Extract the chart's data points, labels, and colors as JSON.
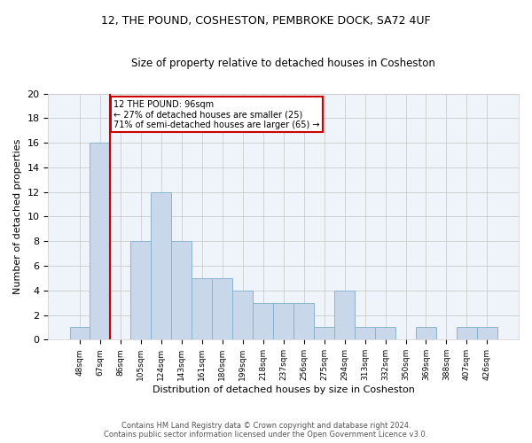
{
  "title1": "12, THE POUND, COSHESTON, PEMBROKE DOCK, SA72 4UF",
  "title2": "Size of property relative to detached houses in Cosheston",
  "xlabel": "Distribution of detached houses by size in Cosheston",
  "ylabel": "Number of detached properties",
  "bar_labels": [
    "48sqm",
    "67sqm",
    "86sqm",
    "105sqm",
    "124sqm",
    "143sqm",
    "161sqm",
    "180sqm",
    "199sqm",
    "218sqm",
    "237sqm",
    "256sqm",
    "275sqm",
    "294sqm",
    "313sqm",
    "332sqm",
    "350sqm",
    "369sqm",
    "388sqm",
    "407sqm",
    "426sqm"
  ],
  "bar_values": [
    1,
    16,
    0,
    8,
    12,
    8,
    5,
    5,
    4,
    3,
    3,
    3,
    1,
    4,
    1,
    1,
    0,
    1,
    0,
    1,
    1
  ],
  "bar_color": "#c8d8ea",
  "bar_edge_color": "#8ab4d0",
  "grid_color": "#cccccc",
  "bg_color": "#eef4fa",
  "vline_color": "#cc0000",
  "annotation_text": "12 THE POUND: 96sqm\n← 27% of detached houses are smaller (25)\n71% of semi-detached houses are larger (65) →",
  "annotation_box_color": "#ffffff",
  "annotation_box_edge": "#cc0000",
  "footer1": "Contains HM Land Registry data © Crown copyright and database right 2024.",
  "footer2": "Contains public sector information licensed under the Open Government Licence v3.0.",
  "ylim": [
    0,
    20
  ],
  "yticks": [
    0,
    2,
    4,
    6,
    8,
    10,
    12,
    14,
    16,
    18,
    20
  ]
}
